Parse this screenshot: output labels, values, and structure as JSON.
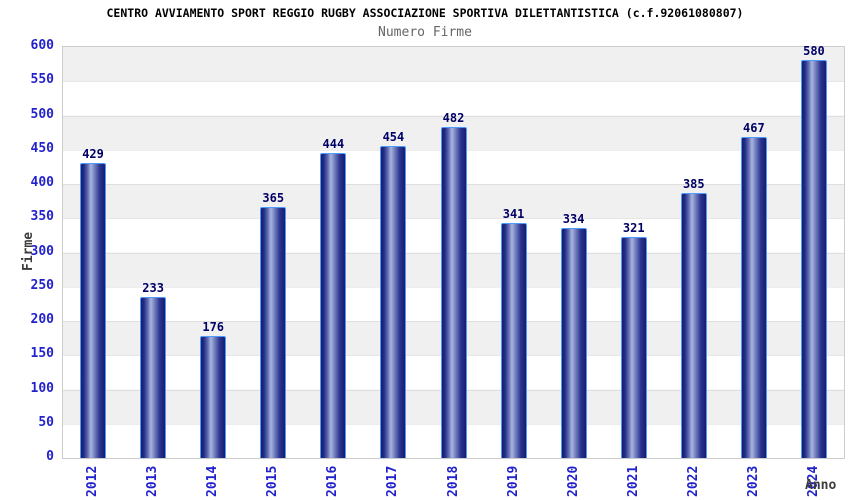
{
  "chart_data": {
    "type": "bar",
    "title": "CENTRO AVVIAMENTO SPORT REGGIO RUGBY ASSOCIAZIONE SPORTIVA DILETTANTISTICA (c.f.92061080807)",
    "subtitle": "Numero Firme",
    "xlabel": "Anno",
    "ylabel": "Firme",
    "categories": [
      "2012",
      "2013",
      "2014",
      "2015",
      "2016",
      "2017",
      "2018",
      "2019",
      "2020",
      "2021",
      "2022",
      "2023",
      "2024"
    ],
    "values": [
      429,
      233,
      176,
      365,
      444,
      454,
      482,
      341,
      334,
      321,
      385,
      467,
      580
    ],
    "ylim": [
      0,
      600
    ],
    "ytick_step": 50,
    "grid": "horizontal gridlines with alternating gray/white 50-unit bands",
    "legend_position": "none",
    "colors": {
      "bar_dark": "#171e6e",
      "bar_light": "#aab4e0",
      "bar_outline": "#4d9aff",
      "value_label": "#000066",
      "axis_tick": "#2222cc",
      "axis_name": "#3c3c3c",
      "band_gray": "#f0f0f0",
      "band_white": "#ffffff",
      "plot_border": "#cccccc",
      "title": "#000000",
      "subtitle": "#666666"
    }
  }
}
